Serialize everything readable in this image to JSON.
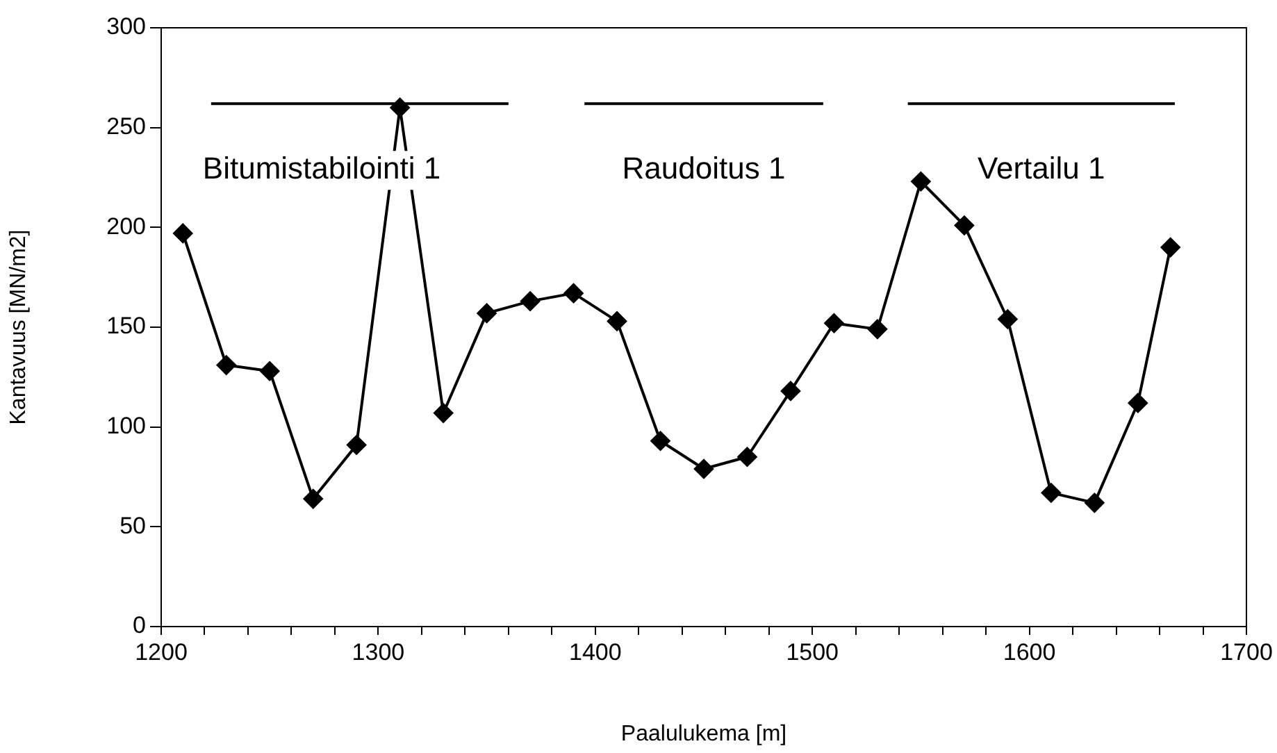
{
  "chart_data": {
    "type": "line",
    "xlabel": "Paalulukema [m]",
    "ylabel": "Kantavuus [MN/m2]",
    "x": [
      1210,
      1230,
      1250,
      1270,
      1290,
      1310,
      1330,
      1350,
      1370,
      1390,
      1410,
      1430,
      1450,
      1470,
      1490,
      1510,
      1530,
      1550,
      1570,
      1590,
      1610,
      1630,
      1650,
      1665
    ],
    "series": [
      {
        "color": "#000000",
        "values": [
          197,
          131,
          128,
          64,
          91,
          260,
          107,
          157,
          163,
          167,
          153,
          93,
          79,
          85,
          118,
          152,
          149,
          223,
          201,
          154,
          67,
          62,
          112,
          190
        ]
      },
      {
        "type": "line",
        "color": "#000000",
        "marker": "none",
        "x": [
          1223,
          1360
        ],
        "values": [
          262,
          262
        ]
      },
      {
        "type": "line",
        "color": "#000000",
        "marker": "none",
        "x": [
          1395,
          1505
        ],
        "values": [
          262,
          262
        ]
      },
      {
        "type": "line",
        "color": "#000000",
        "marker": "none",
        "x": [
          1544,
          1667
        ],
        "values": [
          262,
          262
        ]
      }
    ],
    "annotations": [
      "Bitumistabilointi 1",
      "Raudoitus 1",
      "Vertailu 1"
    ],
    "marker": "diamond",
    "line_style": "solid",
    "legend": false,
    "grid": false,
    "xlim": [
      1200,
      1700
    ],
    "xticks": [
      1200,
      {
        "value": 1220,
        "label": null
      },
      {
        "value": 1240,
        "label": null
      },
      {
        "value": 1260,
        "label": null
      },
      {
        "value": 1280,
        "label": null
      },
      1300,
      {
        "value": 1320,
        "label": null
      },
      {
        "value": 1340,
        "label": null
      },
      {
        "value": 1360,
        "label": null
      },
      {
        "value": 1380,
        "label": null
      },
      1400,
      {
        "value": 1420,
        "label": null
      },
      {
        "value": 1440,
        "label": null
      },
      {
        "value": 1460,
        "label": null
      },
      {
        "value": 1480,
        "label": null
      },
      1500,
      {
        "value": 1520,
        "label": null
      },
      {
        "value": 1540,
        "label": null
      },
      {
        "value": 1560,
        "label": null
      },
      {
        "value": 1580,
        "label": null
      },
      1600,
      {
        "value": 1620,
        "label": null
      },
      {
        "value": 1640,
        "label": null
      },
      {
        "value": 1660,
        "label": null
      },
      {
        "value": 1680,
        "label": null
      },
      1700
    ],
    "ylim": [
      0,
      300
    ],
    "yticks": [
      0,
      50,
      100,
      150,
      200,
      250,
      300
    ]
  }
}
